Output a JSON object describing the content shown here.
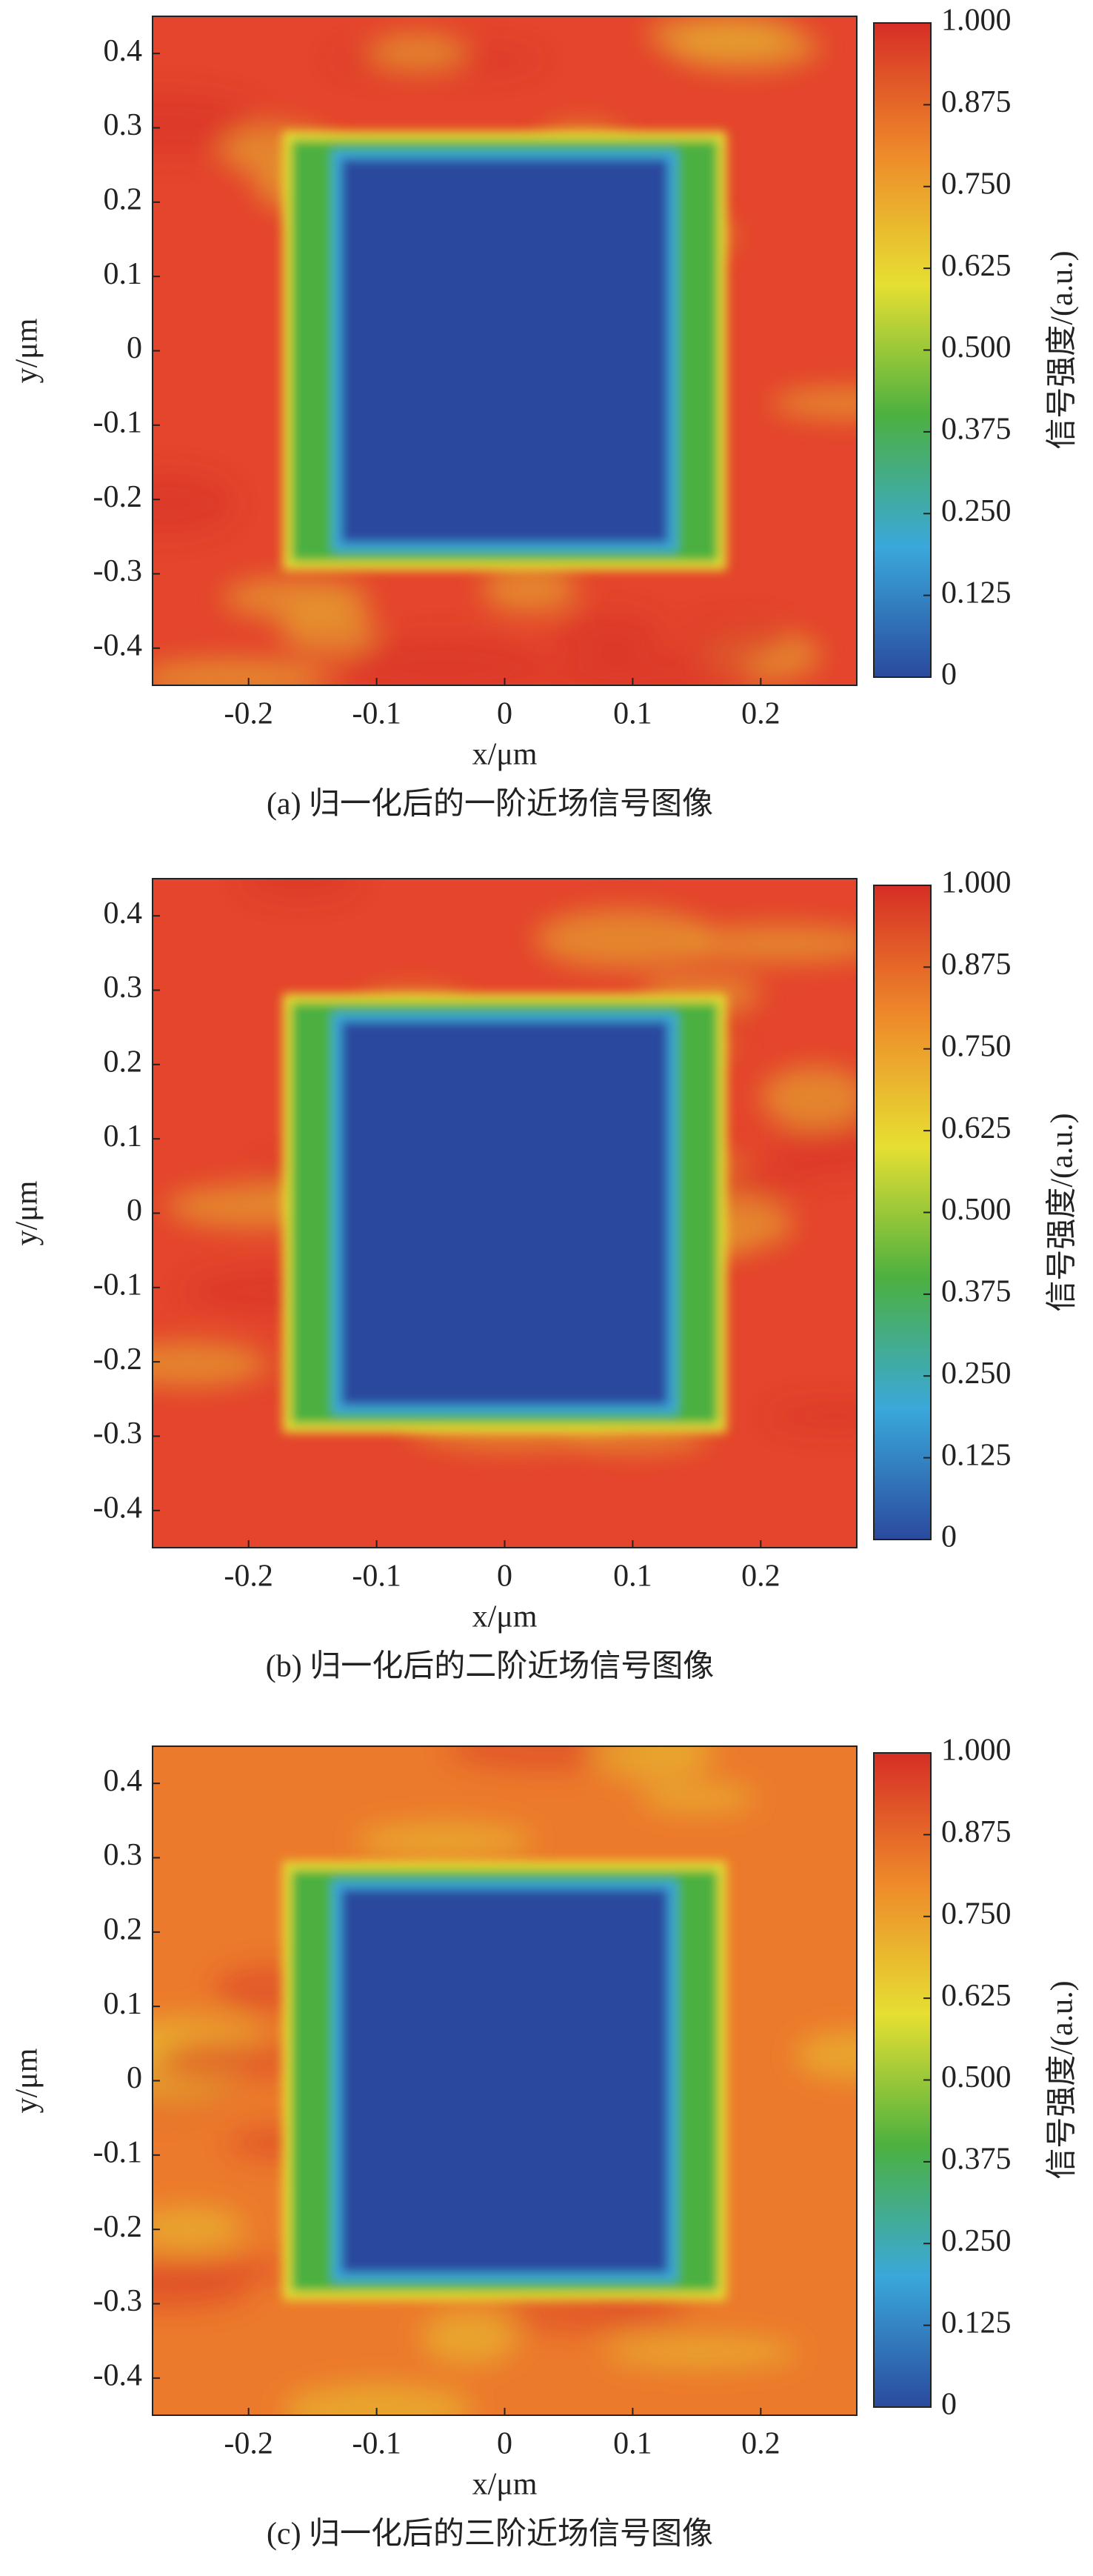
{
  "chart_data": [
    {
      "type": "heatmap",
      "caption": "(a) 归一化后的一阶近场信号图像",
      "xlabel": "x/μm",
      "ylabel": "y/μm",
      "colorbar_label": "信号强度/(a.u.)",
      "xlim": [
        -0.275,
        0.275
      ],
      "ylim": [
        -0.45,
        0.45
      ],
      "xticks": [
        -0.2,
        -0.1,
        0,
        0.1,
        0.2
      ],
      "yticks": [
        -0.4,
        -0.3,
        -0.2,
        -0.1,
        0,
        0.1,
        0.2,
        0.3,
        0.4
      ],
      "clim": [
        0,
        1
      ],
      "cticks": [
        0,
        {
          "value": 0.125,
          "label": "0.125"
        },
        {
          "value": 0.25,
          "label": "0.250"
        },
        {
          "value": 0.375,
          "label": "0.375"
        },
        {
          "value": 0.5,
          "label": "0.500"
        },
        {
          "value": 0.625,
          "label": "0.625"
        },
        {
          "value": 0.75,
          "label": "0.750"
        },
        {
          "value": 0.875,
          "label": "0.875"
        },
        {
          "value": 1,
          "label": "1.000"
        }
      ],
      "colormap": [
        "#2a4a9e",
        "#3aa8da",
        "#4cb040",
        "#e6df32",
        "#ee8a2a",
        "#d62e26"
      ],
      "background": "#e4452c"
    },
    {
      "type": "heatmap",
      "caption": "(b) 归一化后的二阶近场信号图像",
      "xlabel": "x/μm",
      "ylabel": "y/μm",
      "colorbar_label": "信号强度/(a.u.)",
      "xlim": [
        -0.275,
        0.275
      ],
      "ylim": [
        -0.45,
        0.45
      ],
      "xticks": [
        -0.2,
        -0.1,
        0,
        0.1,
        0.2
      ],
      "yticks": [
        -0.4,
        -0.3,
        -0.2,
        -0.1,
        0,
        0.1,
        0.2,
        0.3,
        0.4
      ],
      "clim": [
        0,
        1
      ],
      "cticks": [
        0,
        {
          "value": 0.125,
          "label": "0.125"
        },
        {
          "value": 0.25,
          "label": "0.250"
        },
        {
          "value": 0.375,
          "label": "0.375"
        },
        {
          "value": 0.5,
          "label": "0.500"
        },
        {
          "value": 0.625,
          "label": "0.625"
        },
        {
          "value": 0.75,
          "label": "0.750"
        },
        {
          "value": 0.875,
          "label": "0.875"
        },
        {
          "value": 1,
          "label": "1.000"
        }
      ],
      "colormap": [
        "#2a4a9e",
        "#3aa8da",
        "#4cb040",
        "#e6df32",
        "#ee8a2a",
        "#d62e26"
      ],
      "background": "#e4452c"
    },
    {
      "type": "heatmap",
      "caption": "(c) 归一化后的三阶近场信号图像",
      "xlabel": "x/μm",
      "ylabel": "y/μm",
      "colorbar_label": "信号强度/(a.u.)",
      "xlim": [
        -0.275,
        0.275
      ],
      "ylim": [
        -0.45,
        0.45
      ],
      "xticks": [
        -0.2,
        -0.1,
        0,
        0.1,
        0.2
      ],
      "yticks": [
        -0.4,
        -0.3,
        -0.2,
        -0.1,
        0,
        0.1,
        0.2,
        0.3,
        0.4
      ],
      "clim": [
        0,
        1
      ],
      "cticks": [
        0,
        {
          "value": 0.125,
          "label": "0.125"
        },
        {
          "value": 0.25,
          "label": "0.250"
        },
        {
          "value": 0.375,
          "label": "0.375"
        },
        {
          "value": 0.5,
          "label": "0.500"
        },
        {
          "value": 0.625,
          "label": "0.625"
        },
        {
          "value": 0.75,
          "label": "0.750"
        },
        {
          "value": 0.875,
          "label": "0.875"
        },
        {
          "value": 1,
          "label": "1.000"
        }
      ],
      "colormap": [
        "#2a4a9e",
        "#3aa8da",
        "#4cb040",
        "#e6df32",
        "#ee8a2a",
        "#d62e26"
      ],
      "background": "#ec7a2c"
    }
  ]
}
